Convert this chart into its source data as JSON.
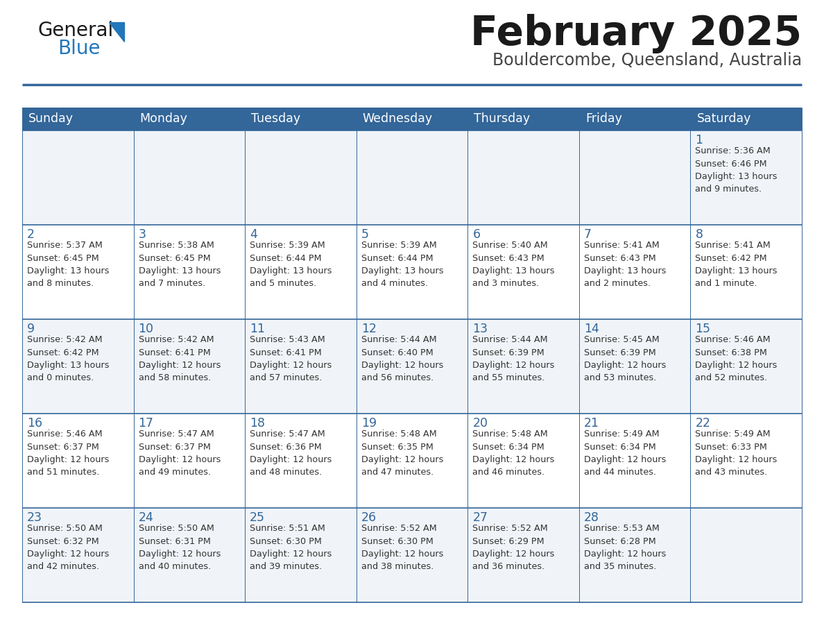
{
  "title": "February 2025",
  "subtitle": "Bouldercombe, Queensland, Australia",
  "days_of_week": [
    "Sunday",
    "Monday",
    "Tuesday",
    "Wednesday",
    "Thursday",
    "Friday",
    "Saturday"
  ],
  "header_bg": "#336699",
  "header_text": "#FFFFFF",
  "cell_bg_odd": "#F0F4F8",
  "cell_bg_even": "#FFFFFF",
  "border_color": "#336699",
  "title_color": "#1a1a1a",
  "subtitle_color": "#444444",
  "day_num_color": "#336699",
  "cell_text_color": "#333333",
  "logo_general_color": "#1a1a1a",
  "logo_blue_color": "#2277BB",
  "logo_triangle_color": "#2277BB",
  "calendar_data": [
    [
      null,
      null,
      null,
      null,
      null,
      null,
      {
        "day": "1",
        "sunrise": "5:36 AM",
        "sunset": "6:46 PM",
        "daylight": "13 hours\nand 9 minutes."
      }
    ],
    [
      {
        "day": "2",
        "sunrise": "5:37 AM",
        "sunset": "6:45 PM",
        "daylight": "13 hours\nand 8 minutes."
      },
      {
        "day": "3",
        "sunrise": "5:38 AM",
        "sunset": "6:45 PM",
        "daylight": "13 hours\nand 7 minutes."
      },
      {
        "day": "4",
        "sunrise": "5:39 AM",
        "sunset": "6:44 PM",
        "daylight": "13 hours\nand 5 minutes."
      },
      {
        "day": "5",
        "sunrise": "5:39 AM",
        "sunset": "6:44 PM",
        "daylight": "13 hours\nand 4 minutes."
      },
      {
        "day": "6",
        "sunrise": "5:40 AM",
        "sunset": "6:43 PM",
        "daylight": "13 hours\nand 3 minutes."
      },
      {
        "day": "7",
        "sunrise": "5:41 AM",
        "sunset": "6:43 PM",
        "daylight": "13 hours\nand 2 minutes."
      },
      {
        "day": "8",
        "sunrise": "5:41 AM",
        "sunset": "6:42 PM",
        "daylight": "13 hours\nand 1 minute."
      }
    ],
    [
      {
        "day": "9",
        "sunrise": "5:42 AM",
        "sunset": "6:42 PM",
        "daylight": "13 hours\nand 0 minutes."
      },
      {
        "day": "10",
        "sunrise": "5:42 AM",
        "sunset": "6:41 PM",
        "daylight": "12 hours\nand 58 minutes."
      },
      {
        "day": "11",
        "sunrise": "5:43 AM",
        "sunset": "6:41 PM",
        "daylight": "12 hours\nand 57 minutes."
      },
      {
        "day": "12",
        "sunrise": "5:44 AM",
        "sunset": "6:40 PM",
        "daylight": "12 hours\nand 56 minutes."
      },
      {
        "day": "13",
        "sunrise": "5:44 AM",
        "sunset": "6:39 PM",
        "daylight": "12 hours\nand 55 minutes."
      },
      {
        "day": "14",
        "sunrise": "5:45 AM",
        "sunset": "6:39 PM",
        "daylight": "12 hours\nand 53 minutes."
      },
      {
        "day": "15",
        "sunrise": "5:46 AM",
        "sunset": "6:38 PM",
        "daylight": "12 hours\nand 52 minutes."
      }
    ],
    [
      {
        "day": "16",
        "sunrise": "5:46 AM",
        "sunset": "6:37 PM",
        "daylight": "12 hours\nand 51 minutes."
      },
      {
        "day": "17",
        "sunrise": "5:47 AM",
        "sunset": "6:37 PM",
        "daylight": "12 hours\nand 49 minutes."
      },
      {
        "day": "18",
        "sunrise": "5:47 AM",
        "sunset": "6:36 PM",
        "daylight": "12 hours\nand 48 minutes."
      },
      {
        "day": "19",
        "sunrise": "5:48 AM",
        "sunset": "6:35 PM",
        "daylight": "12 hours\nand 47 minutes."
      },
      {
        "day": "20",
        "sunrise": "5:48 AM",
        "sunset": "6:34 PM",
        "daylight": "12 hours\nand 46 minutes."
      },
      {
        "day": "21",
        "sunrise": "5:49 AM",
        "sunset": "6:34 PM",
        "daylight": "12 hours\nand 44 minutes."
      },
      {
        "day": "22",
        "sunrise": "5:49 AM",
        "sunset": "6:33 PM",
        "daylight": "12 hours\nand 43 minutes."
      }
    ],
    [
      {
        "day": "23",
        "sunrise": "5:50 AM",
        "sunset": "6:32 PM",
        "daylight": "12 hours\nand 42 minutes."
      },
      {
        "day": "24",
        "sunrise": "5:50 AM",
        "sunset": "6:31 PM",
        "daylight": "12 hours\nand 40 minutes."
      },
      {
        "day": "25",
        "sunrise": "5:51 AM",
        "sunset": "6:30 PM",
        "daylight": "12 hours\nand 39 minutes."
      },
      {
        "day": "26",
        "sunrise": "5:52 AM",
        "sunset": "6:30 PM",
        "daylight": "12 hours\nand 38 minutes."
      },
      {
        "day": "27",
        "sunrise": "5:52 AM",
        "sunset": "6:29 PM",
        "daylight": "12 hours\nand 36 minutes."
      },
      {
        "day": "28",
        "sunrise": "5:53 AM",
        "sunset": "6:28 PM",
        "daylight": "12 hours\nand 35 minutes."
      },
      null
    ]
  ]
}
